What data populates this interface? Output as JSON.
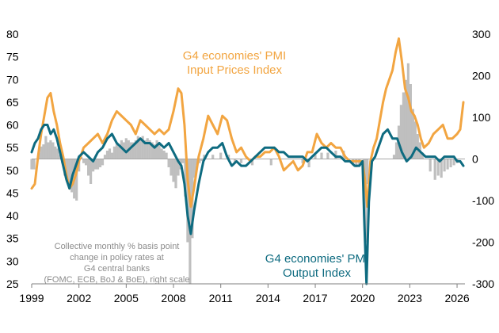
{
  "chart_data": {
    "type": "line",
    "title": "",
    "xlabel": "",
    "ylabel_left": "",
    "ylabel_right": "",
    "x_range": [
      1999.0,
      2026.5
    ],
    "ylim_left": [
      25,
      80
    ],
    "ylim_right": [
      -300,
      300
    ],
    "left_ticks": [
      25,
      30,
      35,
      40,
      45,
      50,
      55,
      60,
      65,
      70,
      75,
      80
    ],
    "right_ticks": [
      -300,
      -200,
      -100,
      0,
      100,
      200,
      300
    ],
    "x_ticks": [
      1999,
      2002,
      2005,
      2008,
      2011,
      2014,
      2017,
      2020,
      2023,
      2026
    ],
    "x_tick_labels": [
      "1999",
      "2002",
      "2005",
      "2008",
      "2011",
      "2014",
      "2017",
      "2020",
      "2023",
      "2026"
    ],
    "grid": false,
    "zero_line_right": true,
    "colors": {
      "input": "#F2A541",
      "output": "#0E6B80",
      "bars": "#BFBFBF",
      "zero": "#A6A6A6"
    },
    "annotations": {
      "input": "G4 economies' PMI\nInput Prices Index",
      "output": "G4 economies' PMI\nOutput  Index",
      "bars": "Collective monthly % basis point\nchange in policy rates at\nG4 central banks\n(FOMC, ECB, BoJ & BoE), right scale"
    },
    "series": [
      {
        "name": "G4 economies' PMI Input Prices Index",
        "axis": "left",
        "x": [
          1999.0,
          1999.2,
          1999.4,
          1999.6,
          1999.8,
          2000.0,
          2000.2,
          2000.4,
          2000.6,
          2000.8,
          2001.0,
          2001.2,
          2001.4,
          2001.6,
          2001.8,
          2002.0,
          2002.3,
          2002.6,
          2002.9,
          2003.2,
          2003.5,
          2003.8,
          2004.1,
          2004.4,
          2004.7,
          2005.0,
          2005.3,
          2005.6,
          2005.9,
          2006.2,
          2006.5,
          2006.8,
          2007.1,
          2007.4,
          2007.7,
          2008.0,
          2008.3,
          2008.5,
          2008.7,
          2008.9,
          2009.1,
          2009.3,
          2009.6,
          2009.9,
          2010.2,
          2010.5,
          2010.8,
          2011.1,
          2011.4,
          2011.7,
          2012.0,
          2012.3,
          2012.6,
          2012.9,
          2013.2,
          2013.5,
          2013.8,
          2014.1,
          2014.4,
          2014.7,
          2015.0,
          2015.3,
          2015.6,
          2015.9,
          2016.2,
          2016.5,
          2016.8,
          2017.1,
          2017.4,
          2017.7,
          2018.0,
          2018.3,
          2018.6,
          2018.9,
          2019.2,
          2019.5,
          2019.8,
          2020.0,
          2020.15,
          2020.3,
          2020.5,
          2020.7,
          2020.9,
          2021.1,
          2021.3,
          2021.5,
          2021.7,
          2021.9,
          2022.1,
          2022.3,
          2022.5,
          2022.7,
          2022.9,
          2023.1,
          2023.3,
          2023.5,
          2023.7,
          2023.9,
          2024.2,
          2024.5,
          2024.8,
          2025.1,
          2025.4,
          2025.7,
          2026.0,
          2026.2,
          2026.4
        ],
        "y": [
          46,
          47,
          53,
          58,
          62,
          66,
          67,
          63,
          60,
          56,
          53,
          49,
          46,
          47,
          49,
          52,
          55,
          56,
          57,
          58,
          56,
          58,
          61,
          63,
          62,
          61,
          60,
          58,
          61,
          60,
          59,
          58,
          59,
          58,
          59,
          63,
          68,
          67,
          60,
          48,
          42,
          46,
          53,
          57,
          62,
          60,
          58,
          62,
          61,
          57,
          54,
          55,
          53,
          52,
          53,
          53,
          54,
          54,
          55,
          53,
          50,
          51,
          52,
          50,
          51,
          54,
          54,
          58,
          56,
          55,
          56,
          55,
          55,
          53,
          52,
          52,
          52,
          52,
          48,
          42,
          52,
          55,
          57,
          61,
          65,
          68,
          70,
          72,
          76,
          79,
          74,
          68,
          66,
          63,
          62,
          60,
          57,
          55,
          56,
          58,
          59,
          60,
          57,
          57,
          58,
          59,
          65
        ]
      },
      {
        "name": "G4 economies' PMI Output  Index",
        "axis": "left",
        "x": [
          1999.0,
          1999.2,
          1999.4,
          1999.6,
          1999.8,
          2000.0,
          2000.2,
          2000.4,
          2000.6,
          2000.8,
          2001.0,
          2001.2,
          2001.4,
          2001.6,
          2001.8,
          2002.0,
          2002.3,
          2002.6,
          2002.9,
          2003.2,
          2003.5,
          2003.8,
          2004.1,
          2004.4,
          2004.7,
          2005.0,
          2005.3,
          2005.6,
          2005.9,
          2006.2,
          2006.5,
          2006.8,
          2007.1,
          2007.4,
          2007.7,
          2008.0,
          2008.3,
          2008.5,
          2008.7,
          2008.9,
          2009.1,
          2009.3,
          2009.6,
          2009.9,
          2010.2,
          2010.5,
          2010.8,
          2011.1,
          2011.4,
          2011.7,
          2012.0,
          2012.3,
          2012.6,
          2012.9,
          2013.2,
          2013.5,
          2013.8,
          2014.1,
          2014.4,
          2014.7,
          2015.0,
          2015.3,
          2015.6,
          2015.9,
          2016.2,
          2016.5,
          2016.8,
          2017.1,
          2017.4,
          2017.7,
          2018.0,
          2018.3,
          2018.6,
          2018.9,
          2019.2,
          2019.5,
          2019.8,
          2020.0,
          2020.1,
          2020.25,
          2020.4,
          2020.6,
          2020.8,
          2021.0,
          2021.3,
          2021.6,
          2021.9,
          2022.2,
          2022.5,
          2022.8,
          2023.1,
          2023.4,
          2023.7,
          2024.0,
          2024.3,
          2024.6,
          2024.9,
          2025.2,
          2025.5,
          2025.8,
          2026.0,
          2026.2,
          2026.4
        ],
        "y": [
          54,
          56,
          57,
          59,
          60,
          60,
          58,
          59,
          57,
          54,
          51,
          48,
          46,
          49,
          51,
          53,
          54,
          53,
          52,
          54,
          55,
          57,
          58,
          56,
          55,
          54,
          55,
          56,
          57,
          56,
          56,
          55,
          56,
          55,
          56,
          54,
          52,
          51,
          47,
          40,
          36,
          41,
          47,
          52,
          54,
          55,
          55,
          56,
          53,
          51,
          52,
          51,
          51,
          52,
          53,
          54,
          55,
          55,
          55,
          54,
          54,
          53,
          53,
          53,
          53,
          52,
          53,
          54,
          55,
          55,
          54,
          53,
          53,
          52,
          52,
          51,
          51,
          52,
          40,
          25,
          43,
          52,
          53,
          55,
          58,
          59,
          57,
          57,
          54,
          52,
          53,
          55,
          54,
          53,
          53,
          53,
          52,
          53,
          53,
          53,
          52,
          52,
          51
        ]
      },
      {
        "name": "Collective monthly % basis point change in policy rates at G4 central banks (FOMC, ECB, BoJ & BoE), right scale",
        "axis": "right",
        "kind": "bar",
        "x": [
          1999.0,
          1999.15,
          1999.3,
          1999.45,
          1999.6,
          1999.75,
          1999.9,
          2000.05,
          2000.2,
          2000.35,
          2000.5,
          2000.65,
          2000.8,
          2000.95,
          2001.1,
          2001.25,
          2001.4,
          2001.55,
          2001.7,
          2001.85,
          2002.0,
          2002.15,
          2002.3,
          2002.45,
          2002.6,
          2002.75,
          2002.9,
          2003.05,
          2003.2,
          2003.35,
          2003.5,
          2003.65,
          2003.8,
          2003.95,
          2004.1,
          2004.25,
          2004.4,
          2004.55,
          2004.7,
          2004.85,
          2005.0,
          2005.15,
          2005.3,
          2005.45,
          2005.6,
          2005.75,
          2005.9,
          2006.05,
          2006.2,
          2006.35,
          2006.5,
          2006.65,
          2006.8,
          2006.95,
          2007.1,
          2007.25,
          2007.4,
          2007.55,
          2007.7,
          2007.85,
          2008.0,
          2008.15,
          2008.3,
          2008.45,
          2008.6,
          2008.75,
          2008.9,
          2009.05,
          2009.2,
          2009.35,
          2009.5,
          2009.65,
          2009.8,
          2009.95,
          2010.5,
          2011.0,
          2011.5,
          2011.9,
          2012.3,
          2013.0,
          2014.2,
          2016.2,
          2016.6,
          2017.0,
          2017.4,
          2017.8,
          2018.3,
          2018.8,
          2019.4,
          2019.6,
          2019.8,
          2020.1,
          2020.2,
          2020.3,
          2022.0,
          2022.15,
          2022.3,
          2022.45,
          2022.6,
          2022.75,
          2022.9,
          2023.05,
          2023.2,
          2023.35,
          2023.5,
          2023.65,
          2023.8,
          2024.3,
          2024.6,
          2024.8,
          2025.0,
          2025.2,
          2025.4,
          2025.6,
          2025.8,
          2026.0
        ],
        "y": [
          -25,
          -25,
          0,
          15,
          30,
          35,
          55,
          40,
          45,
          40,
          30,
          25,
          10,
          -10,
          -40,
          -55,
          -60,
          -80,
          -95,
          -100,
          -30,
          5,
          -10,
          -15,
          -40,
          -60,
          -30,
          -25,
          -25,
          -20,
          -15,
          10,
          20,
          25,
          15,
          30,
          35,
          30,
          45,
          40,
          50,
          45,
          40,
          40,
          45,
          55,
          50,
          55,
          45,
          50,
          45,
          40,
          35,
          45,
          35,
          25,
          20,
          15,
          -20,
          -40,
          -55,
          -70,
          -40,
          -25,
          -10,
          -90,
          -200,
          -300,
          -190,
          -45,
          -15,
          -10,
          -5,
          10,
          10,
          15,
          10,
          -10,
          -10,
          -15,
          -15,
          -10,
          -20,
          10,
          15,
          15,
          20,
          20,
          -15,
          -20,
          -15,
          -100,
          -200,
          -60,
          10,
          40,
          80,
          130,
          160,
          190,
          230,
          180,
          120,
          90,
          60,
          40,
          15,
          -30,
          -50,
          -40,
          -45,
          -30,
          -25,
          -20,
          -15,
          -10
        ]
      }
    ]
  }
}
